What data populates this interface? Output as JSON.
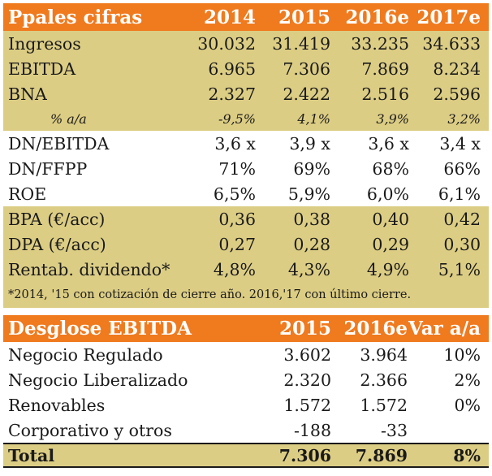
{
  "table1": {
    "header": [
      "Ppales cifras",
      "2014",
      "2015",
      "2016e",
      "2017e"
    ],
    "rows": [
      {
        "label": "Ingresos",
        "values": [
          "30.032",
          "31.419",
          "33.235",
          "34.633"
        ]
      },
      {
        "label": "EBITDA",
        "values": [
          "6.965",
          "7.306",
          "7.869",
          "8.234"
        ]
      },
      {
        "label": "BNA",
        "values": [
          "2.327",
          "2.422",
          "2.516",
          "2.596"
        ]
      },
      {
        "label": "% a/a",
        "values": [
          "-9,5%",
          "4,1%",
          "3,9%",
          "3,2%"
        ]
      },
      {
        "label": "DN/EBITDA",
        "values": [
          "3,6 x",
          "3,9 x",
          "3,6 x",
          "3,4 x"
        ]
      },
      {
        "label": "DN/FFPP",
        "values": [
          "71%",
          "69%",
          "68%",
          "66%"
        ]
      },
      {
        "label": "ROE",
        "values": [
          "6,5%",
          "5,9%",
          "6,0%",
          "6,1%"
        ]
      },
      {
        "label": "BPA (€/acc)",
        "values": [
          "0,36",
          "0,38",
          "0,40",
          "0,42"
        ]
      },
      {
        "label": "DPA (€/acc)",
        "values": [
          "0,27",
          "0,28",
          "0,29",
          "0,30"
        ]
      },
      {
        "label": "Rentab. dividendo*",
        "values": [
          "4,8%",
          "4,3%",
          "4,9%",
          "5,1%"
        ]
      }
    ],
    "footnote": "*2014, '15 con cotización de cierre año. 2016,'17 con último cierre."
  },
  "table2": {
    "header": [
      "Desglose EBITDA",
      "2015",
      "2016e",
      "Var a/a"
    ],
    "rows": [
      {
        "label": "Negocio Regulado",
        "values": [
          "3.602",
          "3.964",
          "10%"
        ]
      },
      {
        "label": "Negocio Liberalizado",
        "values": [
          "2.320",
          "2.366",
          "2%"
        ]
      },
      {
        "label": "Renovables",
        "values": [
          "1.572",
          "1.572",
          "0%"
        ]
      },
      {
        "label": "Corporativo y otros",
        "values": [
          "-188",
          "-33",
          ""
        ]
      }
    ],
    "total": {
      "label": "Total",
      "values": [
        "7.306",
        "7.869",
        "8%"
      ]
    }
  },
  "colors": {
    "header_bg": "#f07a1e",
    "band_bg": "#dccd84",
    "header_text": "#ffffff"
  }
}
